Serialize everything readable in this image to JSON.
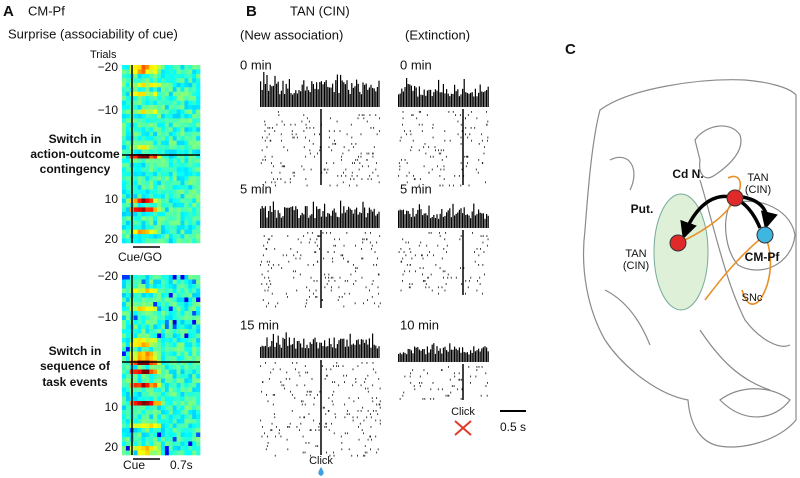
{
  "panel_a": {
    "label": "A",
    "title": "CM-Pf",
    "subtitle": "Surprise (associability of cue)",
    "y_axis_title": "Trials",
    "heatmaps": [
      {
        "yticks": [
          "−20",
          "−10",
          "10",
          "20"
        ],
        "switch_label": [
          "Switch in",
          "action-outcome",
          "contingency"
        ],
        "x_label": "Cue/GO"
      },
      {
        "yticks": [
          "−20",
          "−10",
          "10",
          "20"
        ],
        "switch_label": [
          "Switch in",
          "sequence of",
          "task events"
        ],
        "x_label": "Cue",
        "x_end_label": "0.7s"
      }
    ]
  },
  "panel_b": {
    "label": "B",
    "title": "TAN (CIN)",
    "columns": [
      {
        "heading": "(New association)",
        "rasters": [
          "0 min",
          "5 min",
          "15 min"
        ],
        "event": "Click"
      },
      {
        "heading": "(Extinction)",
        "rasters": [
          "0 min",
          "5 min",
          "10 min"
        ],
        "event": "Click",
        "scale_bar": "0.5 s"
      }
    ]
  },
  "panel_c": {
    "label": "C",
    "caudate": "Cd N.",
    "caudate_neuron": [
      "TAN",
      "(CIN)"
    ],
    "putamen": "Put.",
    "putamen_neuron": [
      "TAN",
      "(CIN)"
    ],
    "thalamus": "CM-Pf",
    "snc": "SNc"
  }
}
